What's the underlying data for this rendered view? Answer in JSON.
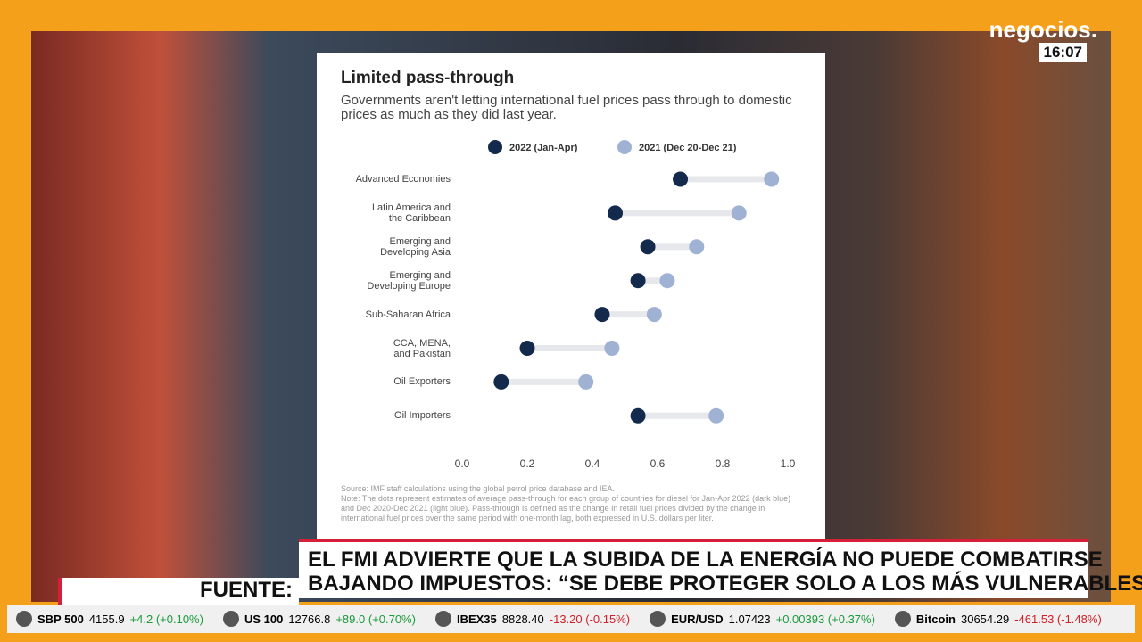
{
  "chart_data": {
    "type": "dumbbell",
    "title": "Limited pass-through",
    "subtitle": "Governments aren't letting international fuel prices pass through to domestic prices as much as they did last year.",
    "categories": [
      "Advanced Economies",
      "Latin America and\nthe Caribbean",
      "Emerging and\nDeveloping Asia",
      "Emerging and\nDeveloping Europe",
      "Sub-Saharan Africa",
      "CCA, MENA,\nand Pakistan",
      "Oil Exporters",
      "Oil Importers"
    ],
    "series": [
      {
        "name": "2022 (Jan-Apr)",
        "color": "#142a4c",
        "values": [
          0.67,
          0.47,
          0.57,
          0.54,
          0.43,
          0.2,
          0.12,
          0.54
        ]
      },
      {
        "name": "2021 (Dec 20-Dec 21)",
        "color": "#9fb2d4",
        "values": [
          0.95,
          0.85,
          0.72,
          0.63,
          0.59,
          0.46,
          0.38,
          0.78
        ]
      }
    ],
    "xlim": [
      0,
      1
    ],
    "xticks": [
      {
        "value": 0,
        "label": "0.0"
      },
      0.2,
      0.4,
      0.6,
      0.8,
      {
        "value": 1,
        "label": "1.0"
      }
    ],
    "note": "Source: IMF staff calculations using the global petrol price database and IEA.\nNote: The dots represent estimates of average pass-through for each group of countries for diesel for Jan-Apr 2022 (dark blue) and Dec 2020-Dec 2021 (light blue). Pass-through is defined as the change in retail fuel prices divided by the change in international fuel prices over the same period with one-month lag, both expressed in U.S. dollars per liter."
  },
  "broadcast": {
    "logo": "negocios.",
    "time": "16:07",
    "headline": [
      "EL FMI ADVIERTE QUE LA SUBIDA DE LA ENERGÍA NO PUEDE COMBATIRSE",
      "BAJANDO IMPUESTOS: “SE DEBE PROTEGER SOLO A LOS MÁS VULNERABLES”"
    ],
    "source_label": "FUENTE:"
  },
  "ticker": {
    "items": [
      {
        "name": "SBP 500",
        "price": "4155.9",
        "change": "+4.2 (+0.10%)",
        "color": "#1a9b3c"
      },
      {
        "name": "US 100",
        "price": "12766.8",
        "change": "+89.0 (+0.70%)",
        "color": "#1a9b3c"
      },
      {
        "name": "IBEX35",
        "price": "8828.40",
        "change": "-13.20 (-0.15%)",
        "color": "#d0202a"
      },
      {
        "name": "EUR/USD",
        "price": "1.07423",
        "change": "+0.00393 (+0.37%)",
        "color": "#1a9b3c"
      },
      {
        "name": "Bitcoin",
        "price": "30654.29",
        "change": "-461.53 (-1.48%)",
        "color": "#d0202a"
      }
    ]
  }
}
